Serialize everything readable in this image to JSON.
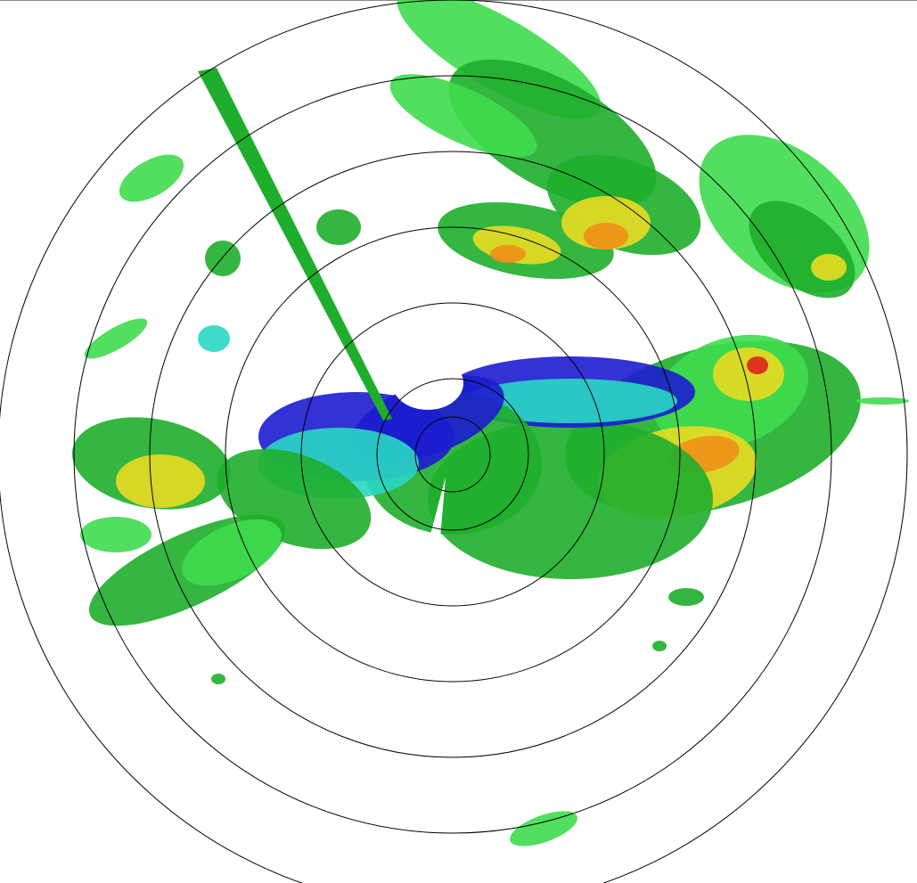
{
  "radar": {
    "range_rings": 7,
    "colors": {
      "weak": "#1c1cd0",
      "light": "#2ad7c4",
      "moderate_light": "#3fdc4e",
      "moderate": "#1fae2c",
      "heavy": "#e8dc22",
      "very_heavy": "#f09018",
      "intense": "#e02020",
      "ring": "#000000"
    }
  }
}
